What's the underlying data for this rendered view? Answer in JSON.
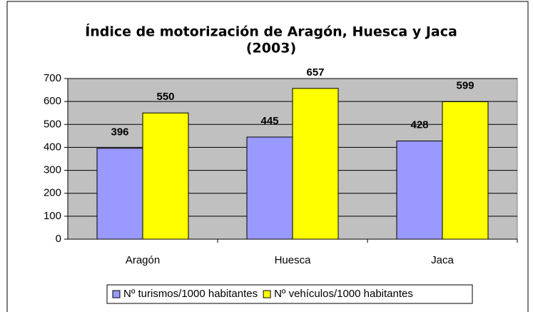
{
  "chart_data": {
    "type": "bar",
    "title": [
      "Índice de motorización de Aragón, Huesca y Jaca",
      "(2003)"
    ],
    "categories": [
      "Aragón",
      "Huesca",
      "Jaca"
    ],
    "series": [
      {
        "name": "Nº turismos/1000 habitantes",
        "color": "#9999ff",
        "values": [
          396,
          445,
          428
        ]
      },
      {
        "name": "Nº vehículos/1000 habitantes",
        "color": "#ffff00",
        "values": [
          550,
          657,
          599
        ]
      }
    ],
    "ylim": [
      0,
      700
    ],
    "yticks": [
      0,
      100,
      200,
      300,
      400,
      500,
      600,
      700
    ],
    "grid": true,
    "legend": "bottom"
  }
}
